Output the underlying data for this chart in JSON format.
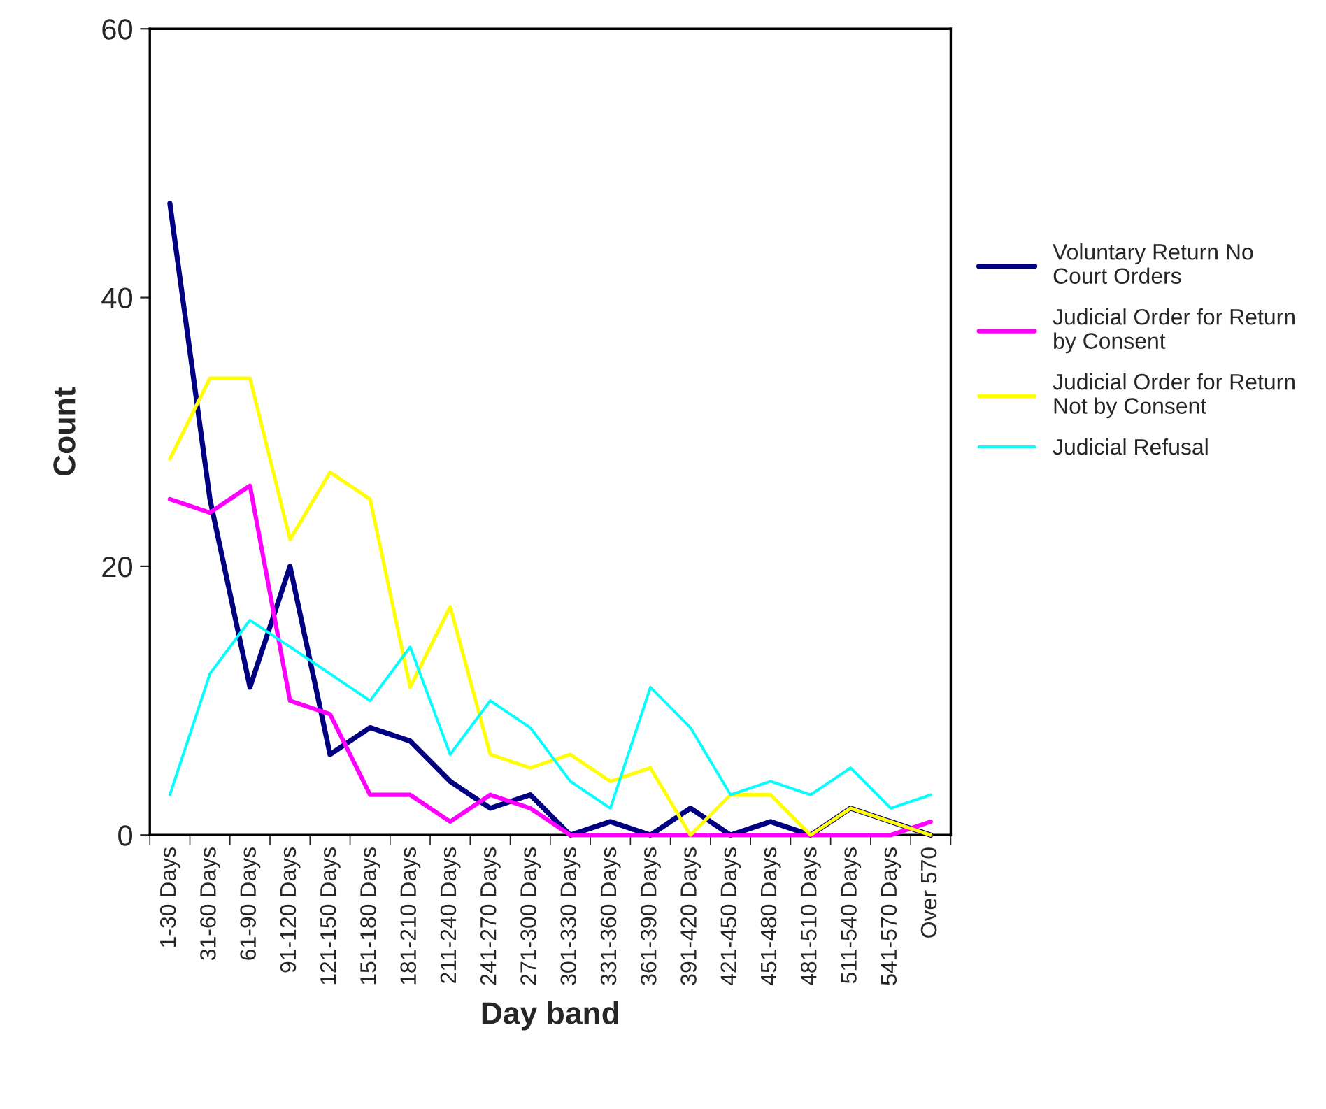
{
  "chart_data": {
    "type": "line",
    "xlabel": "Day band",
    "ylabel": "Count",
    "categories": [
      "1-30 Days",
      "31-60 Days",
      "61-90 Days",
      "91-120 Days",
      "121-150 Days",
      "151-180 Days",
      "181-210 Days",
      "211-240 Days",
      "241-270 Days",
      "271-300 Days",
      "301-330 Days",
      "331-360 Days",
      "361-390 Days",
      "391-420 Days",
      "421-450 Days",
      "451-480 Days",
      "481-510 Days",
      "511-540 Days",
      "541-570 Days",
      "Over 570"
    ],
    "series": [
      {
        "name": "Voluntary Return No\nCourt Orders",
        "color": "#000080",
        "values": [
          47,
          25,
          11,
          20,
          6,
          8,
          7,
          4,
          2,
          3,
          0,
          1,
          0,
          2,
          0,
          1,
          0,
          2,
          1,
          0
        ]
      },
      {
        "name": "Judicial Order for Return\nby Consent",
        "color": "#ff00ff",
        "values": [
          25,
          24,
          26,
          10,
          9,
          3,
          3,
          1,
          3,
          2,
          0,
          0,
          0,
          0,
          0,
          0,
          0,
          0,
          0,
          1
        ]
      },
      {
        "name": "Judicial Order for Return\nNot by Consent",
        "color": "#ffff00",
        "values": [
          28,
          34,
          34,
          22,
          27,
          25,
          11,
          17,
          6,
          5,
          6,
          4,
          5,
          0,
          3,
          3,
          0,
          2,
          1,
          0
        ]
      },
      {
        "name": "Judicial Refusal",
        "color": "#00ffff",
        "values": [
          3,
          12,
          16,
          14,
          12,
          10,
          14,
          6,
          10,
          8,
          4,
          2,
          11,
          8,
          3,
          4,
          3,
          5,
          2,
          3
        ]
      }
    ],
    "ylim": [
      0,
      60
    ],
    "yticks": [
      0,
      20,
      40,
      60
    ],
    "grid": false,
    "legend": "right",
    "marker": "none",
    "line_style": "solid"
  }
}
